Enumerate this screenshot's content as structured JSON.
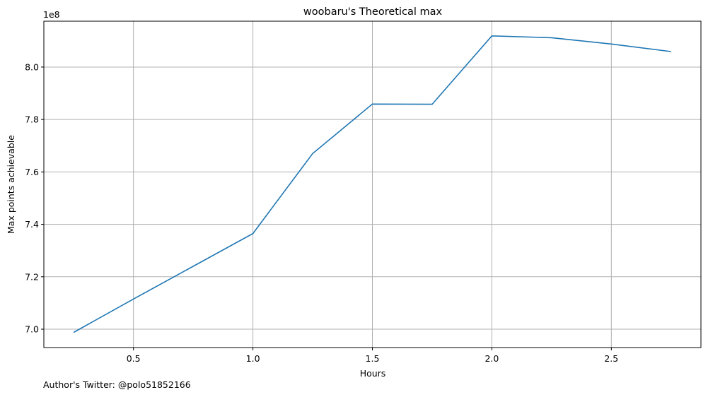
{
  "chart_data": {
    "type": "line",
    "title": "woobaru's Theoretical max",
    "xlabel": "Hours",
    "ylabel": "Max points achievable",
    "y_offset_label": "1e8",
    "x": [
      0.25,
      0.5,
      0.75,
      1.0,
      1.25,
      1.5,
      1.75,
      2.0,
      2.25,
      2.5,
      2.75
    ],
    "series": [
      {
        "color": "#1f77b4",
        "values": [
          698800000,
          711500000,
          724000000,
          736500000,
          767000000,
          785900000,
          785800000,
          811900000,
          811200000,
          808800000,
          805900000
        ]
      }
    ],
    "xlim": [
      0.125,
      2.875
    ],
    "ylim": [
      693000000,
      817500000
    ],
    "xticks": [
      0.5,
      1.0,
      1.5,
      2.0,
      2.5
    ],
    "xtick_labels": [
      "0.5",
      "1.0",
      "1.5",
      "2.0",
      "2.5"
    ],
    "yticks": [
      700000000,
      720000000,
      740000000,
      760000000,
      780000000,
      800000000
    ],
    "ytick_labels": [
      "7.0",
      "7.2",
      "7.4",
      "7.6",
      "7.8",
      "8.0"
    ],
    "grid": true,
    "grid_color": "#b0b0b0"
  },
  "footer": {
    "text": "Author's Twitter: @polo51852166"
  }
}
